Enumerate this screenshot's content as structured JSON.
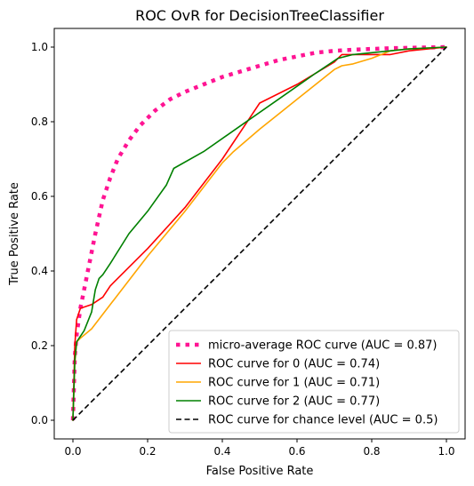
{
  "chart_data": {
    "type": "line",
    "title": "ROC OvR for DecisionTreeClassifier",
    "xlabel": "False Positive Rate",
    "ylabel": "True Positive Rate",
    "xlim": [
      -0.05,
      1.05
    ],
    "ylim": [
      -0.05,
      1.05
    ],
    "xticks": [
      "0.0",
      "0.2",
      "0.4",
      "0.6",
      "0.8",
      "1.0"
    ],
    "yticks": [
      "0.0",
      "0.2",
      "0.4",
      "0.6",
      "0.8",
      "1.0"
    ],
    "grid": false,
    "legend_position": "lower-right",
    "series": [
      {
        "name": "micro-average ROC curve (AUC = 0.87)",
        "color": "#ff1493",
        "style": "dotted",
        "x": [
          0.0,
          0.005,
          0.01,
          0.02,
          0.04,
          0.06,
          0.08,
          0.1,
          0.12,
          0.15,
          0.18,
          0.22,
          0.26,
          0.3,
          0.35,
          0.4,
          0.45,
          0.5,
          0.55,
          0.6,
          0.65,
          0.7,
          0.75,
          0.8,
          0.85,
          0.9,
          0.95,
          1.0
        ],
        "y": [
          0.0,
          0.17,
          0.23,
          0.3,
          0.4,
          0.5,
          0.59,
          0.65,
          0.7,
          0.75,
          0.79,
          0.83,
          0.86,
          0.88,
          0.9,
          0.92,
          0.935,
          0.95,
          0.965,
          0.975,
          0.985,
          0.99,
          0.993,
          0.995,
          0.997,
          0.998,
          0.999,
          1.0
        ]
      },
      {
        "name": "ROC curve for 0 (AUC = 0.74)",
        "color": "#ff0000",
        "style": "solid",
        "x": [
          0.0,
          0.005,
          0.01,
          0.02,
          0.05,
          0.08,
          0.1,
          0.2,
          0.3,
          0.4,
          0.5,
          0.6,
          0.7,
          0.72,
          0.8,
          0.85,
          0.9,
          1.0
        ],
        "y": [
          0.0,
          0.2,
          0.27,
          0.3,
          0.31,
          0.33,
          0.36,
          0.46,
          0.57,
          0.7,
          0.85,
          0.9,
          0.96,
          0.98,
          0.98,
          0.98,
          0.99,
          1.0
        ]
      },
      {
        "name": "ROC curve for 1 (AUC = 0.71)",
        "color": "#ffa500",
        "style": "solid",
        "x": [
          0.0,
          0.005,
          0.01,
          0.02,
          0.05,
          0.1,
          0.2,
          0.3,
          0.4,
          0.42,
          0.43,
          0.5,
          0.6,
          0.7,
          0.72,
          0.75,
          0.8,
          0.85,
          0.9,
          1.0
        ],
        "y": [
          0.0,
          0.15,
          0.21,
          0.22,
          0.245,
          0.31,
          0.44,
          0.56,
          0.69,
          0.71,
          0.72,
          0.78,
          0.86,
          0.94,
          0.95,
          0.955,
          0.97,
          0.99,
          0.995,
          1.0
        ]
      },
      {
        "name": "ROC curve for 2 (AUC = 0.77)",
        "color": "#008000",
        "style": "solid",
        "x": [
          0.0,
          0.005,
          0.01,
          0.03,
          0.05,
          0.06,
          0.07,
          0.08,
          0.1,
          0.15,
          0.2,
          0.25,
          0.27,
          0.35,
          0.45,
          0.55,
          0.65,
          0.71,
          0.75,
          0.85,
          0.9,
          1.0
        ],
        "y": [
          0.0,
          0.16,
          0.21,
          0.24,
          0.29,
          0.35,
          0.38,
          0.39,
          0.42,
          0.5,
          0.56,
          0.63,
          0.675,
          0.72,
          0.79,
          0.86,
          0.93,
          0.97,
          0.98,
          0.99,
          0.995,
          1.0
        ]
      },
      {
        "name": "ROC curve for chance level (AUC = 0.5)",
        "color": "#000000",
        "style": "dashed",
        "x": [
          0.0,
          1.0
        ],
        "y": [
          0.0,
          1.0
        ]
      }
    ]
  }
}
